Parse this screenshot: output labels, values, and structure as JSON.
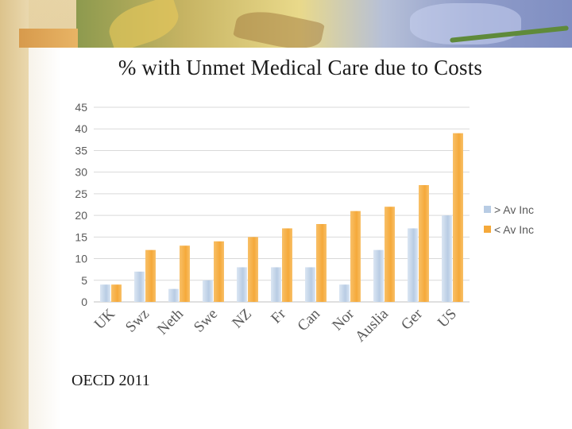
{
  "slide": {
    "title": "% with Unmet Medical Care due to Costs",
    "source": "OECD 2011"
  },
  "colors": {
    "above_avg": "#b8cce4",
    "below_avg": "#f5a93a",
    "gridline": "#d9d9d9",
    "axis_text": "#595959"
  },
  "chart_data": {
    "type": "bar",
    "title": "% with Unmet Medical Care due to Costs",
    "xlabel": "",
    "ylabel": "",
    "ylim": [
      0,
      45
    ],
    "yticks": [
      0,
      5,
      10,
      15,
      20,
      25,
      30,
      35,
      40,
      45
    ],
    "grid": true,
    "legend_position": "right",
    "categories": [
      "UK",
      "Swz",
      "Neth",
      "Swe",
      "NZ",
      "Fr",
      "Can",
      "Nor",
      "Auslia",
      "Ger",
      "US"
    ],
    "series": [
      {
        "name": "> Av Inc",
        "values": [
          4,
          7,
          3,
          5,
          8,
          8,
          8,
          4,
          12,
          17,
          20
        ]
      },
      {
        "name": "< Av Inc",
        "values": [
          4,
          12,
          13,
          14,
          15,
          17,
          18,
          21,
          22,
          27,
          39
        ]
      }
    ]
  }
}
